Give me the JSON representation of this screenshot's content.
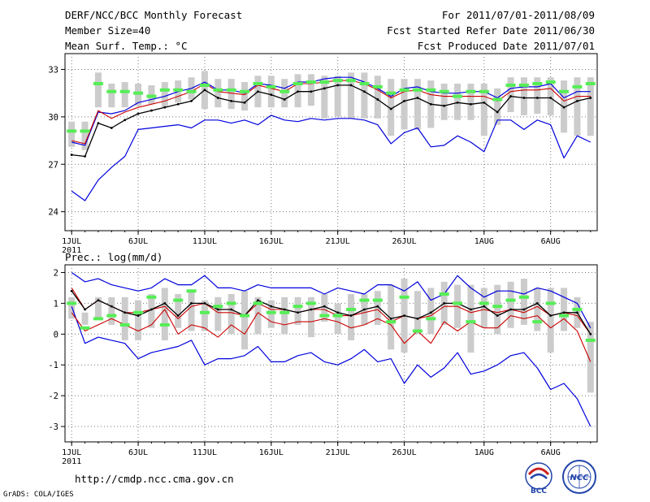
{
  "header": {
    "title": "DERF/NCC/BCC Monthly Forecast",
    "member_size": "Member Size=40",
    "variable": "Mean Surf. Temp.: °C",
    "period": "For 2011/07/01-2011/08/09",
    "started": "Fcst Started Refer Date 2011/06/30",
    "produced": "Fcst Produced Date 2011/07/01"
  },
  "footer": {
    "url": "http://cmdp.ncc.cma.gov.cn",
    "grads": "GrADS: COLA/IGES",
    "logo_left_text": "BCC",
    "logo_right_text": "NCC"
  },
  "colors": {
    "max": "#0000dd",
    "min": "#0000dd",
    "upper": "#cc0000",
    "mean": "#000000",
    "box": "#cccccc",
    "obs": "#55ee55",
    "grid": "#777777"
  },
  "chart_data": [
    {
      "type": "line",
      "title": "Mean Surf. Temp.: °C",
      "xlabel": "",
      "ylabel": "°C",
      "days": 40,
      "x_ticks": [
        "1JUL",
        "6JUL",
        "11JUL",
        "16JUL",
        "21JUL",
        "26JUL",
        "1AUG",
        "6AUG"
      ],
      "x_tick_day": [
        1,
        6,
        11,
        16,
        21,
        26,
        32,
        37
      ],
      "x_sub_label": "2011",
      "y_ticks": [
        24,
        27,
        30,
        33
      ],
      "ylim": [
        22.8,
        34.0
      ],
      "grid": true,
      "series": [
        {
          "name": "ensemble max",
          "values": [
            25.3,
            24.7,
            26.0,
            26.8,
            27.5,
            29.2,
            29.3,
            29.4,
            29.5,
            29.3,
            29.8,
            29.8,
            29.6,
            29.8,
            29.5,
            30.1,
            29.8,
            29.7,
            29.9,
            29.8,
            29.9,
            29.9,
            29.8,
            29.5,
            28.3,
            29.0,
            29.3,
            28.1,
            28.2,
            28.8,
            28.4,
            27.8,
            29.8,
            29.8,
            29.2,
            29.8,
            29.5,
            27.4,
            28.8,
            28.4
          ]
        },
        {
          "name": "ensemble min",
          "values": [
            28.4,
            28.2,
            30.3,
            30.2,
            30.4,
            30.9,
            31.1,
            31.3,
            31.6,
            31.8,
            32.2,
            31.7,
            31.7,
            31.5,
            32.1,
            32.0,
            31.8,
            32.2,
            32.2,
            32.4,
            32.5,
            32.5,
            32.2,
            31.8,
            31.3,
            31.8,
            31.9,
            31.6,
            31.5,
            31.5,
            31.6,
            31.6,
            31.2,
            31.8,
            31.9,
            31.9,
            32.1,
            31.2,
            31.6,
            31.6
          ]
        },
        {
          "name": "ensemble upper",
          "values": [
            28.5,
            28.3,
            30.4,
            29.9,
            30.3,
            30.6,
            30.8,
            31.0,
            31.3,
            31.6,
            32.1,
            31.6,
            31.5,
            31.4,
            32.0,
            31.8,
            31.6,
            32.1,
            32.1,
            32.2,
            32.3,
            32.3,
            32.1,
            31.7,
            31.2,
            31.6,
            31.7,
            31.4,
            31.3,
            31.3,
            31.3,
            31.3,
            31.0,
            31.6,
            31.7,
            31.7,
            31.8,
            31.0,
            31.3,
            31.3
          ]
        },
        {
          "name": "ensemble mean",
          "values": [
            27.6,
            27.5,
            29.6,
            29.3,
            29.8,
            30.2,
            30.4,
            30.6,
            30.8,
            31.0,
            31.7,
            31.2,
            31.0,
            30.9,
            31.6,
            31.4,
            31.1,
            31.6,
            31.6,
            31.8,
            32.0,
            32.0,
            31.6,
            31.1,
            30.5,
            31.0,
            31.2,
            30.8,
            30.7,
            30.9,
            30.8,
            30.9,
            30.3,
            31.3,
            31.2,
            31.2,
            31.2,
            30.6,
            31.0,
            31.2
          ]
        },
        {
          "name": "observation",
          "values": [
            29.1,
            29.1,
            32.1,
            31.6,
            31.6,
            31.5,
            31.3,
            31.7,
            31.7,
            31.6,
            32.0,
            31.7,
            31.7,
            31.6,
            32.1,
            31.9,
            31.6,
            32.1,
            32.2,
            32.2,
            32.3,
            32.3,
            32.1,
            31.9,
            31.5,
            31.7,
            31.7,
            31.7,
            31.6,
            31.3,
            31.6,
            31.6,
            31.1,
            32.0,
            32.0,
            32.1,
            32.2,
            31.6,
            31.9,
            32.1
          ]
        },
        {
          "name": "spread low",
          "values": [
            28.1,
            27.9,
            30.6,
            30.6,
            30.6,
            30.7,
            30.8,
            30.6,
            30.9,
            31.1,
            30.5,
            30.6,
            30.5,
            30.4,
            30.6,
            30.6,
            30.6,
            30.6,
            30.7,
            29.9,
            30.0,
            29.9,
            29.9,
            29.9,
            28.8,
            29.2,
            29.2,
            29.3,
            29.8,
            29.8,
            29.8,
            28.8,
            29.5,
            30.3,
            30.1,
            30.2,
            30.1,
            29.0,
            28.8,
            28.8
          ]
        },
        {
          "name": "spread high",
          "values": [
            29.7,
            29.7,
            32.8,
            32.1,
            32.2,
            32.1,
            32.0,
            32.2,
            32.3,
            32.5,
            32.9,
            32.4,
            32.4,
            32.2,
            32.6,
            32.6,
            32.4,
            32.7,
            32.7,
            32.6,
            32.6,
            32.8,
            32.8,
            32.6,
            32.4,
            32.4,
            32.4,
            32.3,
            32.1,
            32.1,
            32.1,
            32.1,
            31.8,
            32.5,
            32.5,
            32.5,
            32.5,
            32.3,
            32.5,
            32.5
          ]
        }
      ]
    },
    {
      "type": "line",
      "title": "Prec.: log(mm/d)",
      "xlabel": "",
      "ylabel": "log(mm/d)",
      "days": 40,
      "x_ticks": [
        "1JUL",
        "6JUL",
        "11JUL",
        "16JUL",
        "21JUL",
        "26JUL",
        "1AUG",
        "6AUG"
      ],
      "x_tick_day": [
        1,
        6,
        11,
        16,
        21,
        26,
        32,
        37
      ],
      "x_sub_label": "2011",
      "y_ticks": [
        -3,
        -2,
        -1,
        0,
        1,
        2
      ],
      "ylim": [
        -3.5,
        2.25
      ],
      "grid": true,
      "series": [
        {
          "name": "ensemble max",
          "values": [
            2.0,
            1.7,
            1.8,
            1.6,
            1.5,
            1.4,
            1.5,
            1.8,
            1.6,
            1.6,
            1.9,
            1.5,
            1.5,
            1.4,
            1.6,
            1.5,
            1.5,
            1.5,
            1.5,
            1.3,
            1.5,
            1.4,
            1.3,
            1.6,
            1.6,
            1.4,
            1.7,
            1.1,
            1.3,
            1.9,
            1.5,
            1.2,
            1.4,
            1.4,
            1.3,
            1.5,
            1.4,
            1.2,
            1.0,
            0.2
          ]
        },
        {
          "name": "ensemble min",
          "values": [
            0.9,
            -0.3,
            -0.1,
            -0.2,
            -0.3,
            -0.8,
            -0.6,
            -0.5,
            -0.4,
            -0.2,
            -1.0,
            -0.8,
            -0.8,
            -0.7,
            -0.4,
            -0.9,
            -0.9,
            -0.7,
            -0.6,
            -0.9,
            -1.0,
            -0.8,
            -0.5,
            -0.9,
            -0.8,
            -1.6,
            -1.0,
            -1.4,
            -1.1,
            -0.6,
            -1.3,
            -1.2,
            -1.0,
            -0.7,
            -0.6,
            -1.1,
            -1.8,
            -1.6,
            -2.1,
            -3.0
          ]
        },
        {
          "name": "ensemble upper",
          "values": [
            1.5,
            0.8,
            1.1,
            0.9,
            0.7,
            0.7,
            0.8,
            0.9,
            0.5,
            0.9,
            1.0,
            0.7,
            0.7,
            0.6,
            1.0,
            0.8,
            0.8,
            0.7,
            0.8,
            0.8,
            0.6,
            0.6,
            0.7,
            0.8,
            0.4,
            0.6,
            0.5,
            0.6,
            0.9,
            0.9,
            0.7,
            0.8,
            0.7,
            0.8,
            0.7,
            0.9,
            0.6,
            0.7,
            0.6,
            0.0
          ]
        },
        {
          "name": "ensemble mean",
          "values": [
            1.4,
            0.8,
            1.1,
            0.9,
            0.7,
            0.6,
            0.8,
            1.0,
            0.6,
            1.0,
            1.0,
            0.8,
            0.8,
            0.6,
            1.1,
            0.9,
            0.8,
            0.7,
            0.8,
            0.9,
            0.7,
            0.6,
            0.8,
            0.9,
            0.5,
            0.6,
            0.5,
            0.7,
            1.0,
            1.0,
            0.8,
            0.9,
            0.6,
            0.8,
            0.8,
            1.0,
            0.6,
            0.7,
            0.7,
            0.0
          ]
        },
        {
          "name": "lower-red",
          "values": [
            0.7,
            0.1,
            0.3,
            0.5,
            0.3,
            0.1,
            0.3,
            0.8,
            0.0,
            0.3,
            0.2,
            -0.1,
            0.3,
            -0.0,
            0.7,
            0.4,
            0.3,
            0.4,
            0.4,
            0.5,
            0.4,
            0.2,
            0.3,
            0.5,
            0.3,
            -0.3,
            0.1,
            -0.3,
            0.4,
            0.1,
            0.4,
            0.2,
            0.2,
            0.6,
            0.5,
            0.6,
            0.2,
            0.5,
            0.1,
            -0.9
          ]
        },
        {
          "name": "observation",
          "values": [
            1.0,
            0.2,
            0.5,
            0.6,
            0.3,
            0.7,
            1.2,
            0.3,
            1.1,
            1.4,
            0.7,
            0.9,
            1.0,
            0.6,
            1.0,
            0.7,
            0.7,
            0.9,
            1.0,
            0.6,
            0.6,
            0.8,
            1.1,
            1.1,
            0.4,
            1.2,
            0.1,
            0.5,
            1.3,
            1.0,
            0.4,
            1.0,
            0.9,
            1.1,
            1.2,
            0.4,
            1.0,
            0.6,
            0.8,
            -0.2
          ]
        },
        {
          "name": "spread low",
          "values": [
            0.5,
            0.3,
            0.5,
            0.3,
            -0.2,
            -0.2,
            0.2,
            -0.2,
            0.2,
            0.1,
            0.1,
            0.1,
            0.0,
            -0.5,
            0.0,
            0.2,
            0.0,
            0.3,
            -0.1,
            0.4,
            0.0,
            -0.2,
            0.3,
            0.3,
            -0.5,
            -0.6,
            0.0,
            0.0,
            0.3,
            0.2,
            -0.6,
            0.2,
            0.0,
            0.2,
            0.3,
            0.1,
            -0.6,
            0.1,
            0.2,
            -1.9
          ]
        },
        {
          "name": "spread high",
          "values": [
            1.2,
            0.7,
            1.2,
            1.2,
            1.2,
            1.1,
            1.3,
            1.5,
            1.3,
            1.4,
            1.1,
            1.2,
            1.3,
            1.4,
            1.2,
            1.1,
            1.2,
            1.2,
            1.2,
            1.3,
            1.0,
            1.3,
            1.3,
            1.4,
            1.6,
            1.8,
            1.4,
            1.5,
            1.7,
            1.6,
            1.6,
            1.5,
            1.6,
            1.7,
            1.8,
            1.5,
            1.5,
            1.5,
            1.2,
            0.4
          ]
        }
      ]
    }
  ]
}
